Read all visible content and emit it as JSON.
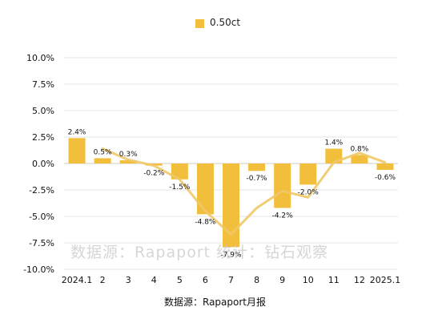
{
  "legend": {
    "label": "0.50ct"
  },
  "watermark": "数据源：Rapaport 统计：钻石观察",
  "source": "数据源：Rapaport月报",
  "chart_data": {
    "type": "bar",
    "categories": [
      "2024.1",
      "2",
      "3",
      "4",
      "5",
      "6",
      "7",
      "8",
      "9",
      "10",
      "11",
      "12",
      "2025.1"
    ],
    "series": [
      {
        "name": "0.50ct",
        "values": [
          2.4,
          0.5,
          0.3,
          -0.2,
          -1.5,
          -4.8,
          -7.9,
          -0.7,
          -4.2,
          -2.0,
          1.4,
          0.8,
          -0.6
        ]
      }
    ],
    "data_labels": [
      "2.4%",
      "0.5%",
      "0.3%",
      "-0.2%",
      "-1.5%",
      "-4.8%",
      "-7.9%",
      "-0.7%",
      "-4.2%",
      "-2.0%",
      "1.4%",
      "0.8%",
      "-0.6%"
    ],
    "trend_line": {
      "values": [
        null,
        1.4,
        0.35,
        -0.2,
        -1.5,
        -4.5,
        -6.7,
        -4.2,
        -2.6,
        -3.2,
        0.1,
        1.0,
        0.1
      ]
    },
    "ylim": [
      -10,
      10
    ],
    "yticks": [
      10,
      7.5,
      5,
      2.5,
      0,
      -2.5,
      -5,
      -7.5,
      -10
    ],
    "ytick_labels": [
      "10.0%",
      "7.5%",
      "5.0%",
      "2.5%",
      "0.0%",
      "-2.5%",
      "-5.0%",
      "-7.5%",
      "-10.0%"
    ],
    "grid": "horizontal",
    "legend_position": "top-center",
    "colors": {
      "bar": "#f2bf3d",
      "line": "#efc868",
      "grid": "#e6e6e6",
      "text": "#111111"
    }
  }
}
